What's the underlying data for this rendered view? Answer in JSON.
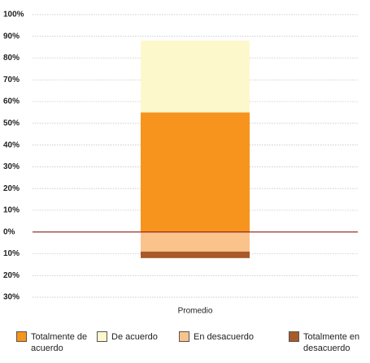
{
  "chart_data": {
    "type": "bar",
    "stacked": true,
    "categories": [
      "Promedio"
    ],
    "series": [
      {
        "name": "Totalmente de acuerdo",
        "color": "#f7941d",
        "values": [
          55
        ]
      },
      {
        "name": "De acuerdo",
        "color": "#fdf8cc",
        "values": [
          33
        ]
      },
      {
        "name": "En desacuerdo",
        "color": "#fbc38c",
        "values": [
          -9
        ]
      },
      {
        "name": "Totalmente en desacuerdo",
        "color": "#a85a2a",
        "values": [
          -3
        ]
      }
    ],
    "ylim": [
      -30,
      100
    ],
    "yticks": [
      {
        "value": 100,
        "label": "100%"
      },
      {
        "value": 90,
        "label": "90%"
      },
      {
        "value": 80,
        "label": "80%"
      },
      {
        "value": 70,
        "label": "70%"
      },
      {
        "value": 60,
        "label": "60%"
      },
      {
        "value": 50,
        "label": "50%"
      },
      {
        "value": 40,
        "label": "40%"
      },
      {
        "value": 30,
        "label": "30%"
      },
      {
        "value": 20,
        "label": "20%"
      },
      {
        "value": 10,
        "label": "10%"
      },
      {
        "value": 0,
        "label": "0%"
      },
      {
        "value": -10,
        "label": "10%"
      },
      {
        "value": -20,
        "label": "20%"
      },
      {
        "value": -30,
        "label": "30%"
      }
    ],
    "grid": true,
    "zero_line_color": "#8b1a1a",
    "legend": "bottom"
  }
}
